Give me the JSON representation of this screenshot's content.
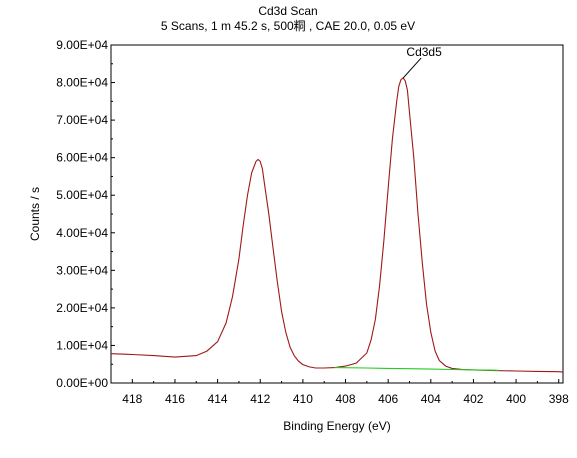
{
  "chart_data": {
    "type": "line",
    "title": "Cd3d Scan",
    "subtitle": "5 Scans,  1 m 45.2 s,  500粡 ,  CAE 20.0,  0.05 eV",
    "xlabel": "Binding Energy (eV)",
    "ylabel": "Counts / s",
    "xlim": [
      419,
      397.8
    ],
    "x_reversed": true,
    "ylim": [
      0,
      90000
    ],
    "grid": false,
    "x_ticks": [
      "418",
      "416",
      "414",
      "412",
      "410",
      "408",
      "406",
      "404",
      "402",
      "400",
      "398"
    ],
    "x_tick_values": [
      418,
      416,
      414,
      412,
      410,
      408,
      406,
      404,
      402,
      400,
      398
    ],
    "y_ticks": [
      "0.00E+00",
      "1.00E+04",
      "2.00E+04",
      "3.00E+04",
      "4.00E+04",
      "5.00E+04",
      "6.00E+04",
      "7.00E+04",
      "8.00E+04",
      "9.00E+04"
    ],
    "y_tick_values": [
      0,
      10000,
      20000,
      30000,
      40000,
      50000,
      60000,
      70000,
      80000,
      90000
    ],
    "annotations": [
      {
        "text": "Cd3d5",
        "x": 405.3,
        "y": 81200
      }
    ],
    "series": [
      {
        "color": "#a01818",
        "x": [
          419,
          418,
          417,
          416,
          415,
          414.5,
          414,
          413.6,
          413.3,
          413,
          412.8,
          412.6,
          412.4,
          412.2,
          412.1,
          412,
          411.9,
          411.8,
          411.6,
          411.4,
          411.2,
          411,
          410.8,
          410.6,
          410.4,
          410.2,
          410,
          409.7,
          409.4,
          409,
          408.5,
          408,
          407.5,
          407,
          406.8,
          406.6,
          406.4,
          406.2,
          406,
          405.8,
          405.6,
          405.5,
          405.4,
          405.3,
          405.2,
          405.1,
          405,
          404.8,
          404.6,
          404.4,
          404.2,
          404,
          403.8,
          403.6,
          403.3,
          403,
          402.5,
          402,
          401,
          400,
          399,
          398,
          397.8
        ],
        "y": [
          7800,
          7600,
          7300,
          6900,
          7300,
          8500,
          11000,
          16000,
          23000,
          33000,
          42000,
          50000,
          56000,
          59000,
          59500,
          59000,
          57000,
          53000,
          45000,
          36000,
          27000,
          19000,
          13500,
          9500,
          7200,
          5800,
          4900,
          4300,
          4000,
          4000,
          4100,
          4500,
          5300,
          8000,
          11500,
          17000,
          26000,
          38000,
          52000,
          65000,
          75000,
          79000,
          80800,
          81200,
          80500,
          78000,
          72000,
          60000,
          45000,
          32000,
          21000,
          13500,
          8500,
          6000,
          4500,
          3900,
          3600,
          3500,
          3300,
          3200,
          3100,
          3000,
          2900
        ]
      },
      {
        "color": "#22cc22",
        "x": [
          408.5,
          407,
          406,
          405,
          404,
          403,
          402,
          401,
          400.8
        ],
        "y": [
          4100,
          4000,
          3900,
          3800,
          3700,
          3600,
          3500,
          3400,
          3350
        ]
      }
    ]
  }
}
